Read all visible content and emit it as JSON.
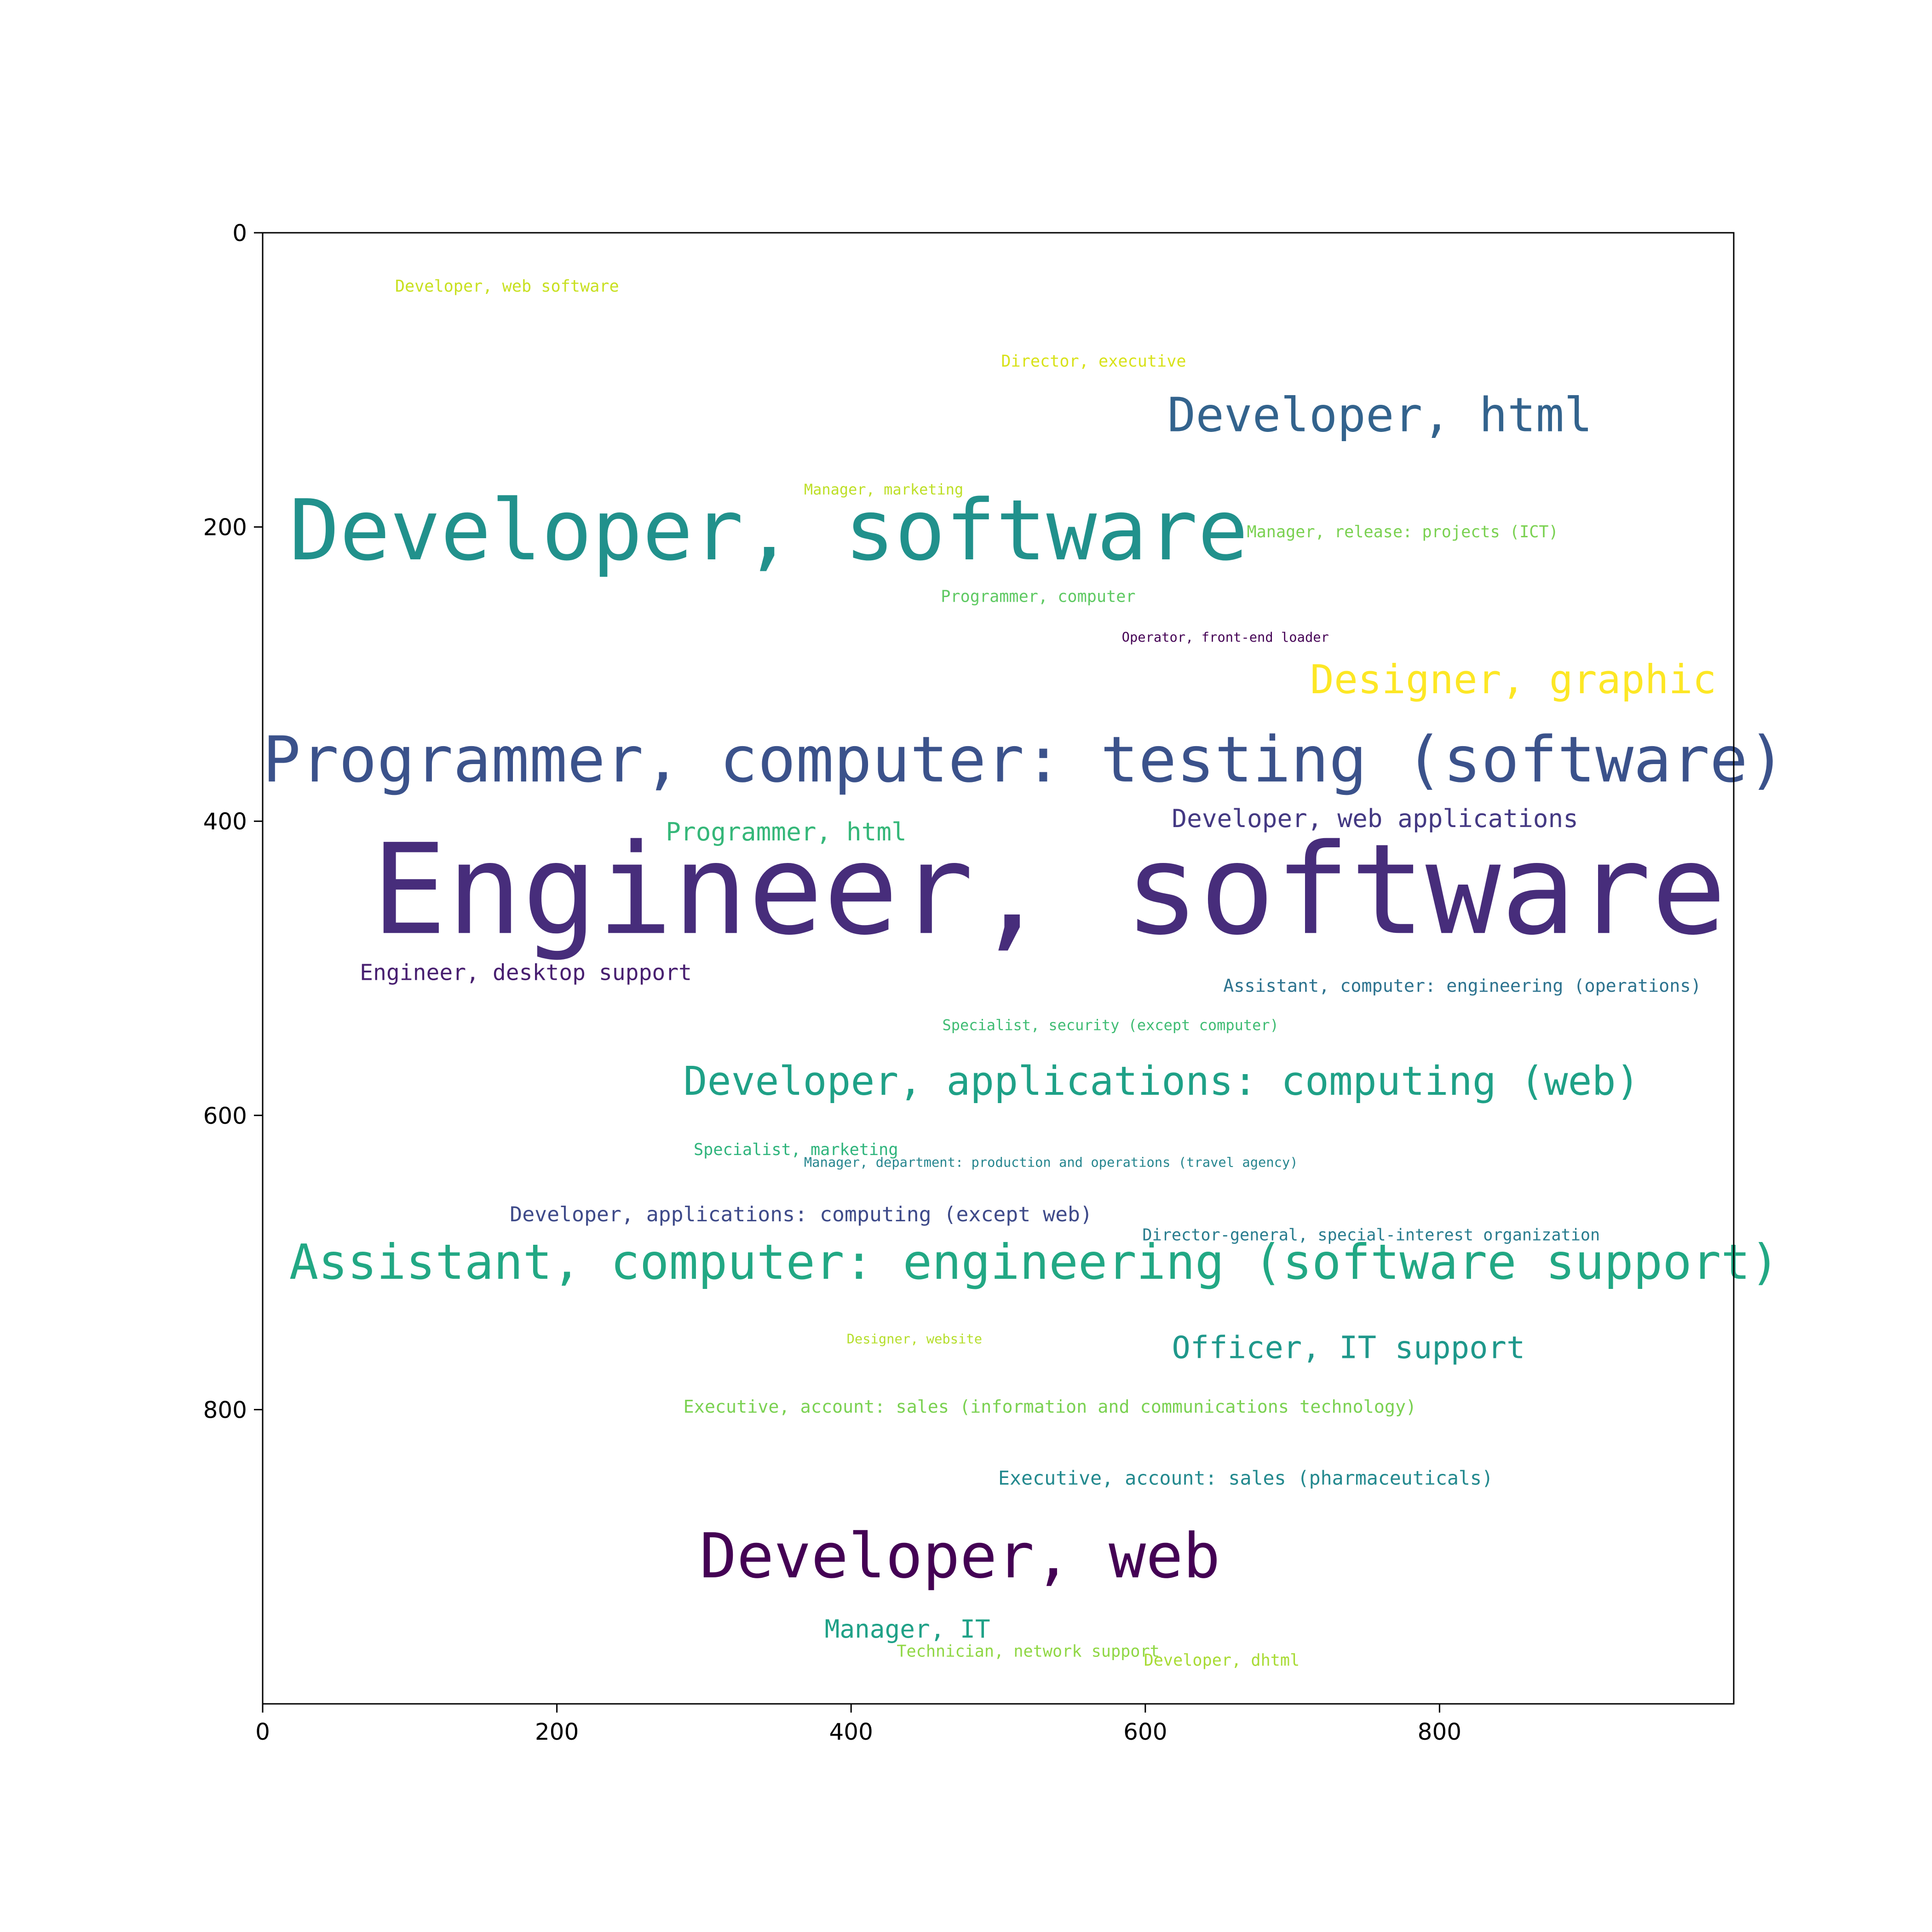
{
  "chart_data": {
    "type": "wordcloud",
    "title": "",
    "xlabel": "",
    "ylabel": "",
    "xlim": [
      0,
      1000
    ],
    "ylim": [
      1000,
      0
    ],
    "xticks": [
      0,
      200,
      400,
      600,
      800
    ],
    "yticks": [
      0,
      200,
      400,
      600,
      800
    ],
    "grid": false,
    "words": [
      {
        "text": "Developer, web software",
        "x": 90,
        "y": 40,
        "size": 11,
        "color": "#c8e020"
      },
      {
        "text": "Director, executive",
        "x": 502,
        "y": 91,
        "size": 11,
        "color": "#d8e219"
      },
      {
        "text": "Developer, html",
        "x": 615,
        "y": 135,
        "size": 32,
        "color": "#33638d"
      },
      {
        "text": "Manager, marketing",
        "x": 368,
        "y": 178,
        "size": 10,
        "color": "#bddf26"
      },
      {
        "text": "Manager, release: projects (ICT)",
        "x": 669,
        "y": 207,
        "size": 11,
        "color": "#7ad151"
      },
      {
        "text": "Developer, software",
        "x": 18,
        "y": 222,
        "size": 57,
        "color": "#21918c"
      },
      {
        "text": "Programmer, computer",
        "x": 461,
        "y": 251,
        "size": 11,
        "color": "#5ec962"
      },
      {
        "text": "Operator, front-end loader",
        "x": 584,
        "y": 278,
        "size": 9,
        "color": "#440154"
      },
      {
        "text": "Designer, graphic",
        "x": 712,
        "y": 313,
        "size": 27,
        "color": "#fde725"
      },
      {
        "text": "Programmer, computer: testing (software)",
        "x": 0,
        "y": 373,
        "size": 43,
        "color": "#3b528b"
      },
      {
        "text": "Developer, web applications",
        "x": 618,
        "y": 404,
        "size": 17,
        "color": "#443983"
      },
      {
        "text": "Programmer, html",
        "x": 274,
        "y": 413,
        "size": 17,
        "color": "#35b779"
      },
      {
        "text": "Engineer, software",
        "x": 74,
        "y": 476,
        "size": 85,
        "color": "#472d7b"
      },
      {
        "text": "Engineer, desktop support",
        "x": 66,
        "y": 508,
        "size": 15,
        "color": "#481f70"
      },
      {
        "text": "Assistant, computer: engineering (operations)",
        "x": 653,
        "y": 516,
        "size": 12,
        "color": "#2c728e"
      },
      {
        "text": "Specialist, security (except computer)",
        "x": 462,
        "y": 542,
        "size": 10,
        "color": "#3fbc73"
      },
      {
        "text": "Developer, applications: computing (web)",
        "x": 286,
        "y": 586,
        "size": 27,
        "color": "#1fa187"
      },
      {
        "text": "Specialist, marketing",
        "x": 293,
        "y": 627,
        "size": 11,
        "color": "#2fb47c"
      },
      {
        "text": "Manager, department: production and operations (travel agency)",
        "x": 368,
        "y": 635,
        "size": 9,
        "color": "#25858e"
      },
      {
        "text": "Developer, applications: computing (except web)",
        "x": 168,
        "y": 672,
        "size": 14,
        "color": "#3e4a89"
      },
      {
        "text": "Director-general, special-interest organization",
        "x": 598,
        "y": 685,
        "size": 11,
        "color": "#287c8e"
      },
      {
        "text": "Assistant, computer: engineering (software support)",
        "x": 18,
        "y": 711,
        "size": 33,
        "color": "#22a884"
      },
      {
        "text": "Designer, website",
        "x": 397,
        "y": 755,
        "size": 9,
        "color": "#b5de2b"
      },
      {
        "text": "Officer, IT support",
        "x": 618,
        "y": 765,
        "size": 21,
        "color": "#1f988b"
      },
      {
        "text": "Executive, account: sales (information and communications technology)",
        "x": 286,
        "y": 802,
        "size": 12,
        "color": "#7ad151"
      },
      {
        "text": "Executive, account: sales (pharmaceuticals)",
        "x": 500,
        "y": 851,
        "size": 13,
        "color": "#23898e"
      },
      {
        "text": "Developer, web",
        "x": 297,
        "y": 914,
        "size": 42,
        "color": "#440154"
      },
      {
        "text": "Manager, IT",
        "x": 382,
        "y": 955,
        "size": 17,
        "color": "#1fa187"
      },
      {
        "text": "Technician, network support",
        "x": 431,
        "y": 968,
        "size": 11,
        "color": "#8fd744"
      },
      {
        "text": "Developer, dhtml",
        "x": 599,
        "y": 974,
        "size": 11,
        "color": "#a8db34"
      }
    ]
  }
}
